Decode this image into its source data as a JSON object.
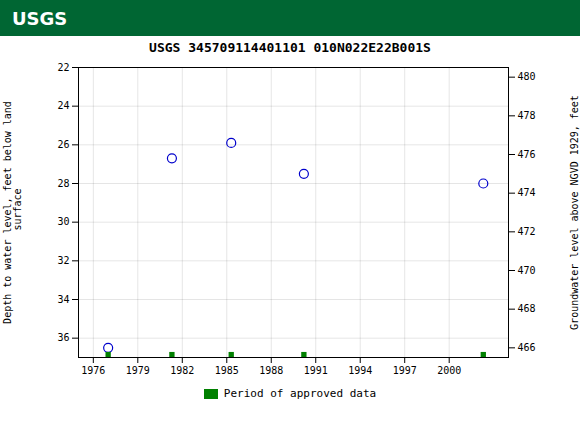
{
  "chart_data": {
    "type": "scatter",
    "title": "USGS 345709114401101 010N022E22B001S",
    "annotations": [
      "USGS"
    ],
    "ylabel": "Depth to water level, feet below land\n surface",
    "y2label": "Groundwater level above NGVD 1929, feet",
    "x": [
      1977.0,
      1981.3,
      1985.3,
      1990.2,
      2002.3
    ],
    "series": [
      {
        "color": "#0000cc",
        "marker": "circle",
        "values": [
          36.5,
          26.7,
          25.9,
          27.5,
          28.0
        ]
      },
      {
        "name": "Period of approved data",
        "color": "#008000",
        "marker": "square",
        "values": [
          36.85,
          36.85,
          36.85,
          36.85,
          36.85
        ]
      }
    ],
    "xlim": [
      1975,
      2004
    ],
    "ylim": [
      37.0,
      22.0
    ],
    "y2lim": [
      465.5,
      480.5
    ],
    "xticks": [
      1976,
      1979,
      1982,
      1985,
      1988,
      1991,
      1994,
      1997,
      2000
    ],
    "yticks": [
      22,
      24,
      26,
      28,
      30,
      32,
      34,
      36
    ],
    "y2ticks": [
      480,
      478,
      476,
      474,
      472,
      470,
      468,
      466
    ],
    "grid": true,
    "legend": "bottom"
  }
}
